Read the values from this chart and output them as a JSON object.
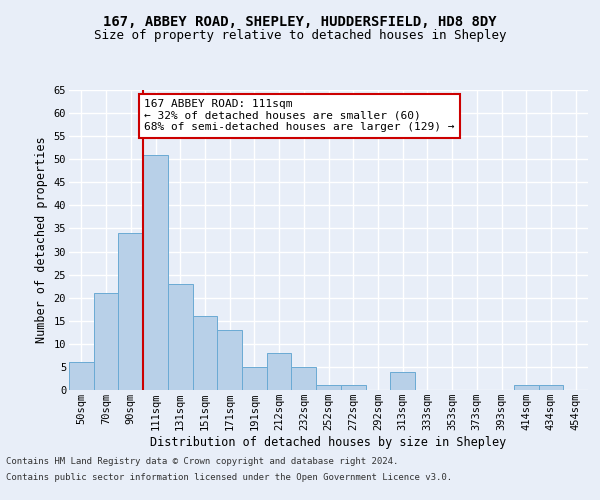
{
  "title1": "167, ABBEY ROAD, SHEPLEY, HUDDERSFIELD, HD8 8DY",
  "title2": "Size of property relative to detached houses in Shepley",
  "xlabel": "Distribution of detached houses by size in Shepley",
  "ylabel": "Number of detached properties",
  "categories": [
    "50sqm",
    "70sqm",
    "90sqm",
    "111sqm",
    "131sqm",
    "151sqm",
    "171sqm",
    "191sqm",
    "212sqm",
    "232sqm",
    "252sqm",
    "272sqm",
    "292sqm",
    "313sqm",
    "333sqm",
    "353sqm",
    "373sqm",
    "393sqm",
    "414sqm",
    "434sqm",
    "454sqm"
  ],
  "values": [
    6,
    21,
    34,
    51,
    23,
    16,
    13,
    5,
    8,
    5,
    1,
    1,
    0,
    4,
    0,
    0,
    0,
    0,
    1,
    1,
    0
  ],
  "bar_color": "#b8d0e8",
  "bar_edge_color": "#6aaad4",
  "vline_index": 3,
  "vline_color": "#cc0000",
  "annotation_line1": "167 ABBEY ROAD: 111sqm",
  "annotation_line2": "← 32% of detached houses are smaller (60)",
  "annotation_line3": "68% of semi-detached houses are larger (129) →",
  "annotation_box_color": "#ffffff",
  "annotation_box_edge": "#cc0000",
  "ylim": [
    0,
    65
  ],
  "yticks": [
    0,
    5,
    10,
    15,
    20,
    25,
    30,
    35,
    40,
    45,
    50,
    55,
    60,
    65
  ],
  "footnote1": "Contains HM Land Registry data © Crown copyright and database right 2024.",
  "footnote2": "Contains public sector information licensed under the Open Government Licence v3.0.",
  "bg_color": "#e8eef8",
  "plot_bg_color": "#e8eef8",
  "grid_color": "#ffffff",
  "title_fontsize": 10,
  "subtitle_fontsize": 9,
  "tick_fontsize": 7.5,
  "label_fontsize": 8.5,
  "footnote_fontsize": 6.5
}
